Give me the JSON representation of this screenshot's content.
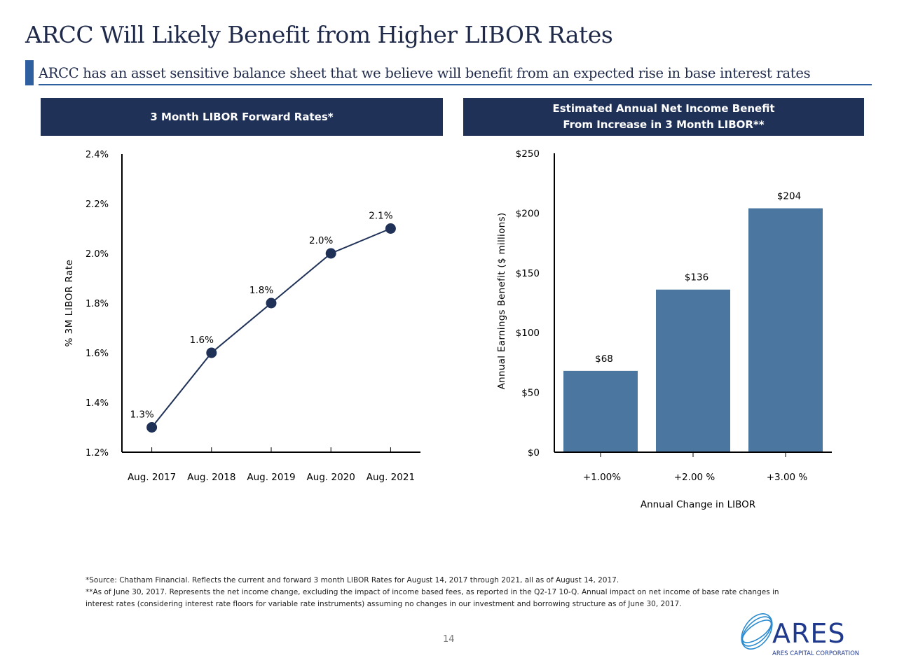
{
  "page": {
    "title": "ARCC Will Likely Benefit from Higher LIBOR Rates",
    "subtitle": "ARCC has an asset sensitive balance sheet that we believe will benefit from an expected rise in base interest rates",
    "page_number": "14",
    "footnotes": [
      "*Source: Chatham Financial. Reflects the current and forward 3 month LIBOR Rates for August 14, 2017 through 2021, all as of August 14, 2017.",
      "**As of June 30, 2017. Represents the net income change, excluding the impact of income based fees, as reported in the Q2-17 10-Q. Annual impact on net income of base rate changes in",
      "interest rates (considering interest rate floors for variable rate instruments) assuming no changes in our investment and borrowing structure as of June 30, 2017."
    ],
    "logo": {
      "name": "ARES",
      "tagline": "ARES CAPITAL CORPORATION"
    },
    "colors": {
      "navy": "#1f3157",
      "accent": "#2e5f9e",
      "bar": "#4a76a0"
    }
  },
  "chart_data": [
    {
      "type": "line",
      "header": "3 Month LIBOR Forward Rates*",
      "title": "3 Month LIBOR Forward Rates*",
      "ylabel": "% 3M LIBOR Rate",
      "xlabel": "",
      "categories": [
        "Aug. 2017",
        "Aug. 2018",
        "Aug. 2019",
        "Aug. 2020",
        "Aug. 2021"
      ],
      "values": [
        1.3,
        1.6,
        1.8,
        2.0,
        2.1
      ],
      "data_labels": [
        "1.3%",
        "1.6%",
        "1.8%",
        "2.0%",
        "2.1%"
      ],
      "ylim": [
        1.2,
        2.4
      ],
      "yticks": [
        1.2,
        1.4,
        1.6,
        1.8,
        2.0,
        2.2,
        2.4
      ],
      "ytick_labels": [
        "1.2%",
        "1.4%",
        "1.6%",
        "1.8%",
        "2.0%",
        "2.2%",
        "2.4%"
      ],
      "grid": false
    },
    {
      "type": "bar",
      "header_lines": [
        "Estimated Annual Net Income Benefit",
        "From Increase in 3 Month LIBOR**"
      ],
      "title": "Estimated Annual Net Income Benefit From Increase in 3 Month LIBOR**",
      "ylabel": "Annual Earnings Benefit ($ millions)",
      "xlabel": "Annual Change in LIBOR",
      "categories": [
        "+1.00%",
        "+2.00 %",
        "+3.00 %"
      ],
      "values": [
        68,
        136,
        204
      ],
      "data_labels": [
        "$68",
        "$136",
        "$204"
      ],
      "ylim": [
        0,
        250
      ],
      "yticks": [
        0,
        50,
        100,
        150,
        200,
        250
      ],
      "ytick_labels": [
        "$0",
        "$50",
        "$100",
        "$150",
        "$200",
        "$250"
      ],
      "grid": false
    }
  ]
}
